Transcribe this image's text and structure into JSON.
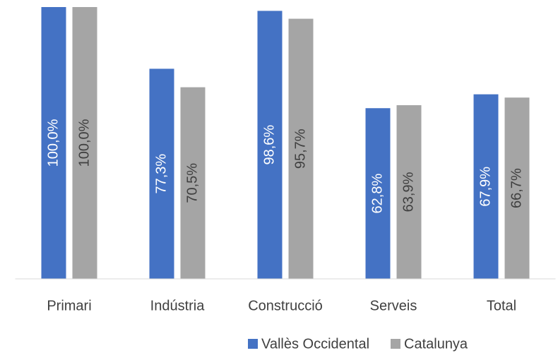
{
  "chart_data": {
    "type": "bar",
    "categories": [
      "Primari",
      "Indústria",
      "Construcció",
      "Serveis",
      "Total"
    ],
    "series": [
      {
        "name": "Vallès Occidental",
        "color": "#4472c4",
        "values": [
          100.0,
          77.3,
          98.6,
          62.8,
          67.9
        ],
        "value_labels": [
          "100,0%",
          "77,3%",
          "98,6%",
          "62,8%",
          "67,9%"
        ]
      },
      {
        "name": "Catalunya",
        "color": "#a5a5a5",
        "values": [
          100.0,
          70.5,
          95.7,
          63.9,
          66.7
        ],
        "value_labels": [
          "100,0%",
          "70,5%",
          "95,7%",
          "63,9%",
          "66,7%"
        ]
      }
    ],
    "ylim": [
      0,
      100
    ],
    "legend": "bottom"
  }
}
